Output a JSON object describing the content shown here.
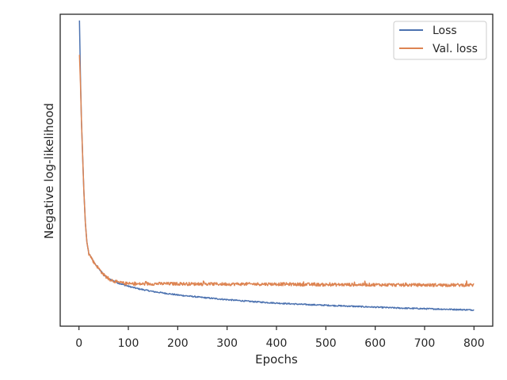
{
  "chart_data": {
    "type": "line",
    "title": "",
    "xlabel": "Epochs",
    "ylabel": "Negative log-likelihood",
    "xlim": [
      -38,
      838
    ],
    "ylim": [
      0,
      1
    ],
    "xticks": [
      0,
      100,
      200,
      300,
      400,
      500,
      600,
      700,
      800
    ],
    "yticks_visible": false,
    "grid": false,
    "legend_position": "top-right",
    "series": [
      {
        "name": "Loss",
        "color": "#4c72b0",
        "x": [
          1,
          3,
          5,
          8,
          10,
          13,
          16,
          20,
          25,
          30,
          40,
          50,
          60,
          70,
          80,
          100,
          120,
          150,
          200,
          250,
          300,
          350,
          400,
          450,
          500,
          550,
          600,
          650,
          700,
          750,
          800
        ],
        "y": [
          0.98,
          0.8,
          0.66,
          0.52,
          0.43,
          0.33,
          0.27,
          0.232,
          0.22,
          0.205,
          0.185,
          0.165,
          0.152,
          0.145,
          0.138,
          0.128,
          0.12,
          0.111,
          0.1,
          0.092,
          0.085,
          0.079,
          0.074,
          0.07,
          0.067,
          0.064,
          0.061,
          0.058,
          0.056,
          0.054,
          0.052
        ],
        "noise": 0.002
      },
      {
        "name": "Val. loss",
        "color": "#dd8452",
        "x": [
          1,
          3,
          5,
          8,
          10,
          13,
          16,
          20,
          25,
          30,
          40,
          50,
          60,
          70,
          80,
          100,
          120,
          150,
          200,
          250,
          300,
          350,
          400,
          450,
          500,
          550,
          600,
          650,
          700,
          750,
          800
        ],
        "y": [
          0.87,
          0.78,
          0.66,
          0.52,
          0.43,
          0.33,
          0.27,
          0.232,
          0.22,
          0.205,
          0.185,
          0.165,
          0.152,
          0.145,
          0.14,
          0.136,
          0.135,
          0.136,
          0.136,
          0.135,
          0.135,
          0.135,
          0.135,
          0.134,
          0.133,
          0.133,
          0.133,
          0.132,
          0.132,
          0.132,
          0.132
        ],
        "noise": 0.005
      }
    ]
  }
}
